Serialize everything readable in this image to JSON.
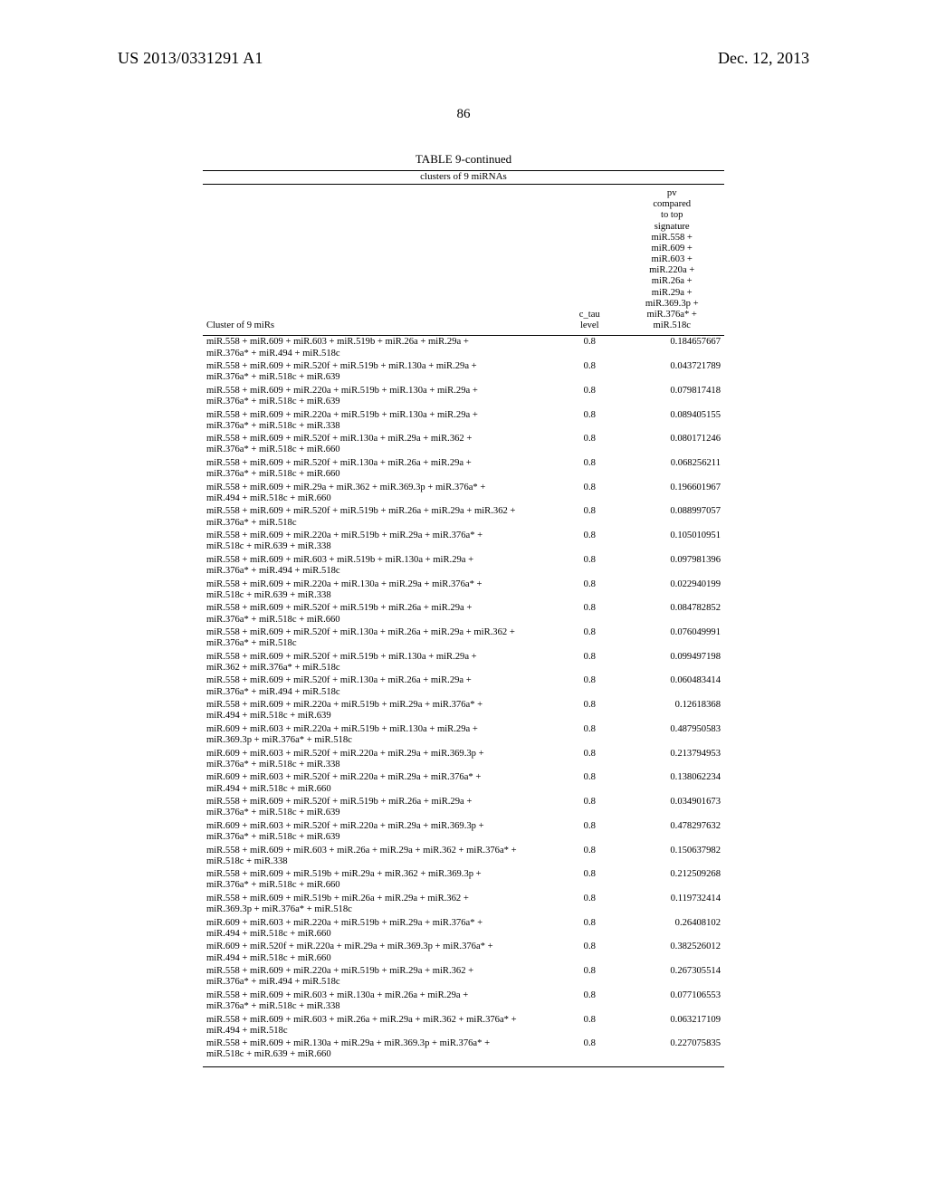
{
  "header": {
    "left": "US 2013/0331291 A1",
    "right": "Dec. 12, 2013",
    "page_number": "86"
  },
  "table": {
    "title": "TABLE 9-continued",
    "subtitle": "clusters of 9 miRNAs",
    "columns": {
      "cluster_label": "Cluster of 9 miRs",
      "ctau_label": "c_tau level",
      "pv_header_lines": [
        "pv",
        "compared",
        "to top",
        "signature",
        "miR.558 +",
        "miR.609 +",
        "miR.603 +",
        "miR.220a +",
        "miR.26a +",
        "miR.29a +",
        "miR.369.3p +",
        "miR.376a* +",
        "miR.518c"
      ]
    },
    "rows": [
      {
        "cluster": "miR.558 + miR.609 + miR.603 + miR.519b + miR.26a + miR.29a + miR.376a* + miR.494 + miR.518c",
        "ctau": "0.8",
        "pv": "0.184657667"
      },
      {
        "cluster": "miR.558 + miR.609 + miR.520f + miR.519b + miR.130a + miR.29a + miR.376a* + miR.518c + miR.639",
        "ctau": "0.8",
        "pv": "0.043721789"
      },
      {
        "cluster": "miR.558 + miR.609 + miR.220a + miR.519b + miR.130a + miR.29a + miR.376a* + miR.518c + miR.639",
        "ctau": "0.8",
        "pv": "0.079817418"
      },
      {
        "cluster": "miR.558 + miR.609 + miR.220a + miR.519b + miR.130a + miR.29a + miR.376a* + miR.518c + miR.338",
        "ctau": "0.8",
        "pv": "0.089405155"
      },
      {
        "cluster": "miR.558 + miR.609 + miR.520f + miR.130a + miR.29a + miR.362 + miR.376a* + miR.518c + miR.660",
        "ctau": "0.8",
        "pv": "0.080171246"
      },
      {
        "cluster": "miR.558 + miR.609 + miR.520f + miR.130a + miR.26a + miR.29a + miR.376a* + miR.518c + miR.660",
        "ctau": "0.8",
        "pv": "0.068256211"
      },
      {
        "cluster": "miR.558 + miR.609 + miR.29a + miR.362 + miR.369.3p + miR.376a* + miR.494 + miR.518c + miR.660",
        "ctau": "0.8",
        "pv": "0.196601967"
      },
      {
        "cluster": "miR.558 + miR.609 + miR.520f + miR.519b + miR.26a + miR.29a + miR.362 + miR.376a* + miR.518c",
        "ctau": "0.8",
        "pv": "0.088997057"
      },
      {
        "cluster": "miR.558 + miR.609 + miR.220a + miR.519b + miR.29a + miR.376a* + miR.518c + miR.639 + miR.338",
        "ctau": "0.8",
        "pv": "0.105010951"
      },
      {
        "cluster": "miR.558 + miR.609 + miR.603 + miR.519b + miR.130a + miR.29a + miR.376a* + miR.494 + miR.518c",
        "ctau": "0.8",
        "pv": "0.097981396"
      },
      {
        "cluster": "miR.558 + miR.609 + miR.220a + miR.130a + miR.29a + miR.376a* + miR.518c + miR.639 + miR.338",
        "ctau": "0.8",
        "pv": "0.022940199"
      },
      {
        "cluster": "miR.558 + miR.609 + miR.520f + miR.519b + miR.26a + miR.29a + miR.376a* + miR.518c + miR.660",
        "ctau": "0.8",
        "pv": "0.084782852"
      },
      {
        "cluster": "miR.558 + miR.609 + miR.520f + miR.130a + miR.26a + miR.29a + miR.362 + miR.376a* + miR.518c",
        "ctau": "0.8",
        "pv": "0.076049991"
      },
      {
        "cluster": "miR.558 + miR.609 + miR.520f + miR.519b + miR.130a + miR.29a + miR.362 + miR.376a* + miR.518c",
        "ctau": "0.8",
        "pv": "0.099497198"
      },
      {
        "cluster": "miR.558 + miR.609 + miR.520f + miR.130a + miR.26a + miR.29a + miR.376a* + miR.494 + miR.518c",
        "ctau": "0.8",
        "pv": "0.060483414"
      },
      {
        "cluster": "miR.558 + miR.609 + miR.220a + miR.519b + miR.29a + miR.376a* + miR.494 + miR.518c + miR.639",
        "ctau": "0.8",
        "pv": "0.12618368"
      },
      {
        "cluster": "miR.609 + miR.603 + miR.220a + miR.519b + miR.130a + miR.29a + miR.369.3p + miR.376a* + miR.518c",
        "ctau": "0.8",
        "pv": "0.487950583"
      },
      {
        "cluster": "miR.609 + miR.603 + miR.520f + miR.220a + miR.29a + miR.369.3p + miR.376a* + miR.518c + miR.338",
        "ctau": "0.8",
        "pv": "0.213794953"
      },
      {
        "cluster": "miR.609 + miR.603 + miR.520f + miR.220a + miR.29a + miR.376a* + miR.494 + miR.518c + miR.660",
        "ctau": "0.8",
        "pv": "0.138062234"
      },
      {
        "cluster": "miR.558 + miR.609 + miR.520f + miR.519b + miR.26a + miR.29a + miR.376a* + miR.518c + miR.639",
        "ctau": "0.8",
        "pv": "0.034901673"
      },
      {
        "cluster": "miR.609 + miR.603 + miR.520f + miR.220a + miR.29a + miR.369.3p + miR.376a* + miR.518c + miR.639",
        "ctau": "0.8",
        "pv": "0.478297632"
      },
      {
        "cluster": "miR.558 + miR.609 + miR.603 + miR.26a + miR.29a + miR.362 + miR.376a* + miR.518c + miR.338",
        "ctau": "0.8",
        "pv": "0.150637982"
      },
      {
        "cluster": "miR.558 + miR.609 + miR.519b + miR.29a + miR.362 + miR.369.3p + miR.376a* + miR.518c + miR.660",
        "ctau": "0.8",
        "pv": "0.212509268"
      },
      {
        "cluster": "miR.558 + miR.609 + miR.519b + miR.26a + miR.29a + miR.362 + miR.369.3p + miR.376a* + miR.518c",
        "ctau": "0.8",
        "pv": "0.119732414"
      },
      {
        "cluster": "miR.609 + miR.603 + miR.220a + miR.519b + miR.29a + miR.376a* + miR.494 + miR.518c + miR.660",
        "ctau": "0.8",
        "pv": "0.26408102"
      },
      {
        "cluster": "miR.609 + miR.520f + miR.220a + miR.29a + miR.369.3p + miR.376a* + miR.494 + miR.518c + miR.660",
        "ctau": "0.8",
        "pv": "0.382526012"
      },
      {
        "cluster": "miR.558 + miR.609 + miR.220a + miR.519b + miR.29a + miR.362 + miR.376a* + miR.494 + miR.518c",
        "ctau": "0.8",
        "pv": "0.267305514"
      },
      {
        "cluster": "miR.558 + miR.609 + miR.603 + miR.130a + miR.26a + miR.29a + miR.376a* + miR.518c + miR.338",
        "ctau": "0.8",
        "pv": "0.077106553"
      },
      {
        "cluster": "miR.558 + miR.609 + miR.603 + miR.26a + miR.29a + miR.362 + miR.376a* + miR.494 + miR.518c",
        "ctau": "0.8",
        "pv": "0.063217109"
      },
      {
        "cluster": "miR.558 + miR.609 + miR.130a + miR.29a + miR.369.3p + miR.376a* + miR.518c + miR.639 + miR.660",
        "ctau": "0.8",
        "pv": "0.227075835"
      }
    ]
  }
}
